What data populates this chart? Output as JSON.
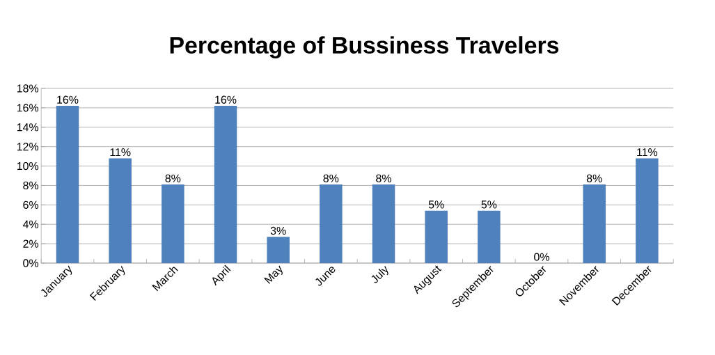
{
  "chart_data": {
    "type": "bar",
    "title": "Percentage of Bussiness Travelers",
    "categories": [
      "January",
      "February",
      "March",
      "April",
      "May",
      "June",
      "July",
      "August",
      "September",
      "October",
      "November",
      "December"
    ],
    "values": [
      16.2,
      10.8,
      8.1,
      16.2,
      2.7,
      8.1,
      8.1,
      5.4,
      5.4,
      0,
      8.1,
      10.8
    ],
    "value_labels": [
      "16%",
      "11%",
      "8%",
      "16%",
      "3%",
      "8%",
      "8%",
      "5%",
      "5%",
      "0%",
      "8%",
      "11%"
    ],
    "color": "#4f81bd",
    "ylim": [
      0,
      18
    ],
    "yticks": [
      {
        "value": 0,
        "label": "0%"
      },
      {
        "value": 2,
        "label": "2%"
      },
      {
        "value": 4,
        "label": "4%"
      },
      {
        "value": 6,
        "label": "6%"
      },
      {
        "value": 8,
        "label": "8%"
      },
      {
        "value": 10,
        "label": "10%"
      },
      {
        "value": 12,
        "label": "12%"
      },
      {
        "value": 14,
        "label": "14%"
      },
      {
        "value": 16,
        "label": "16%"
      },
      {
        "value": 18,
        "label": "18%"
      }
    ],
    "grid": "y"
  }
}
